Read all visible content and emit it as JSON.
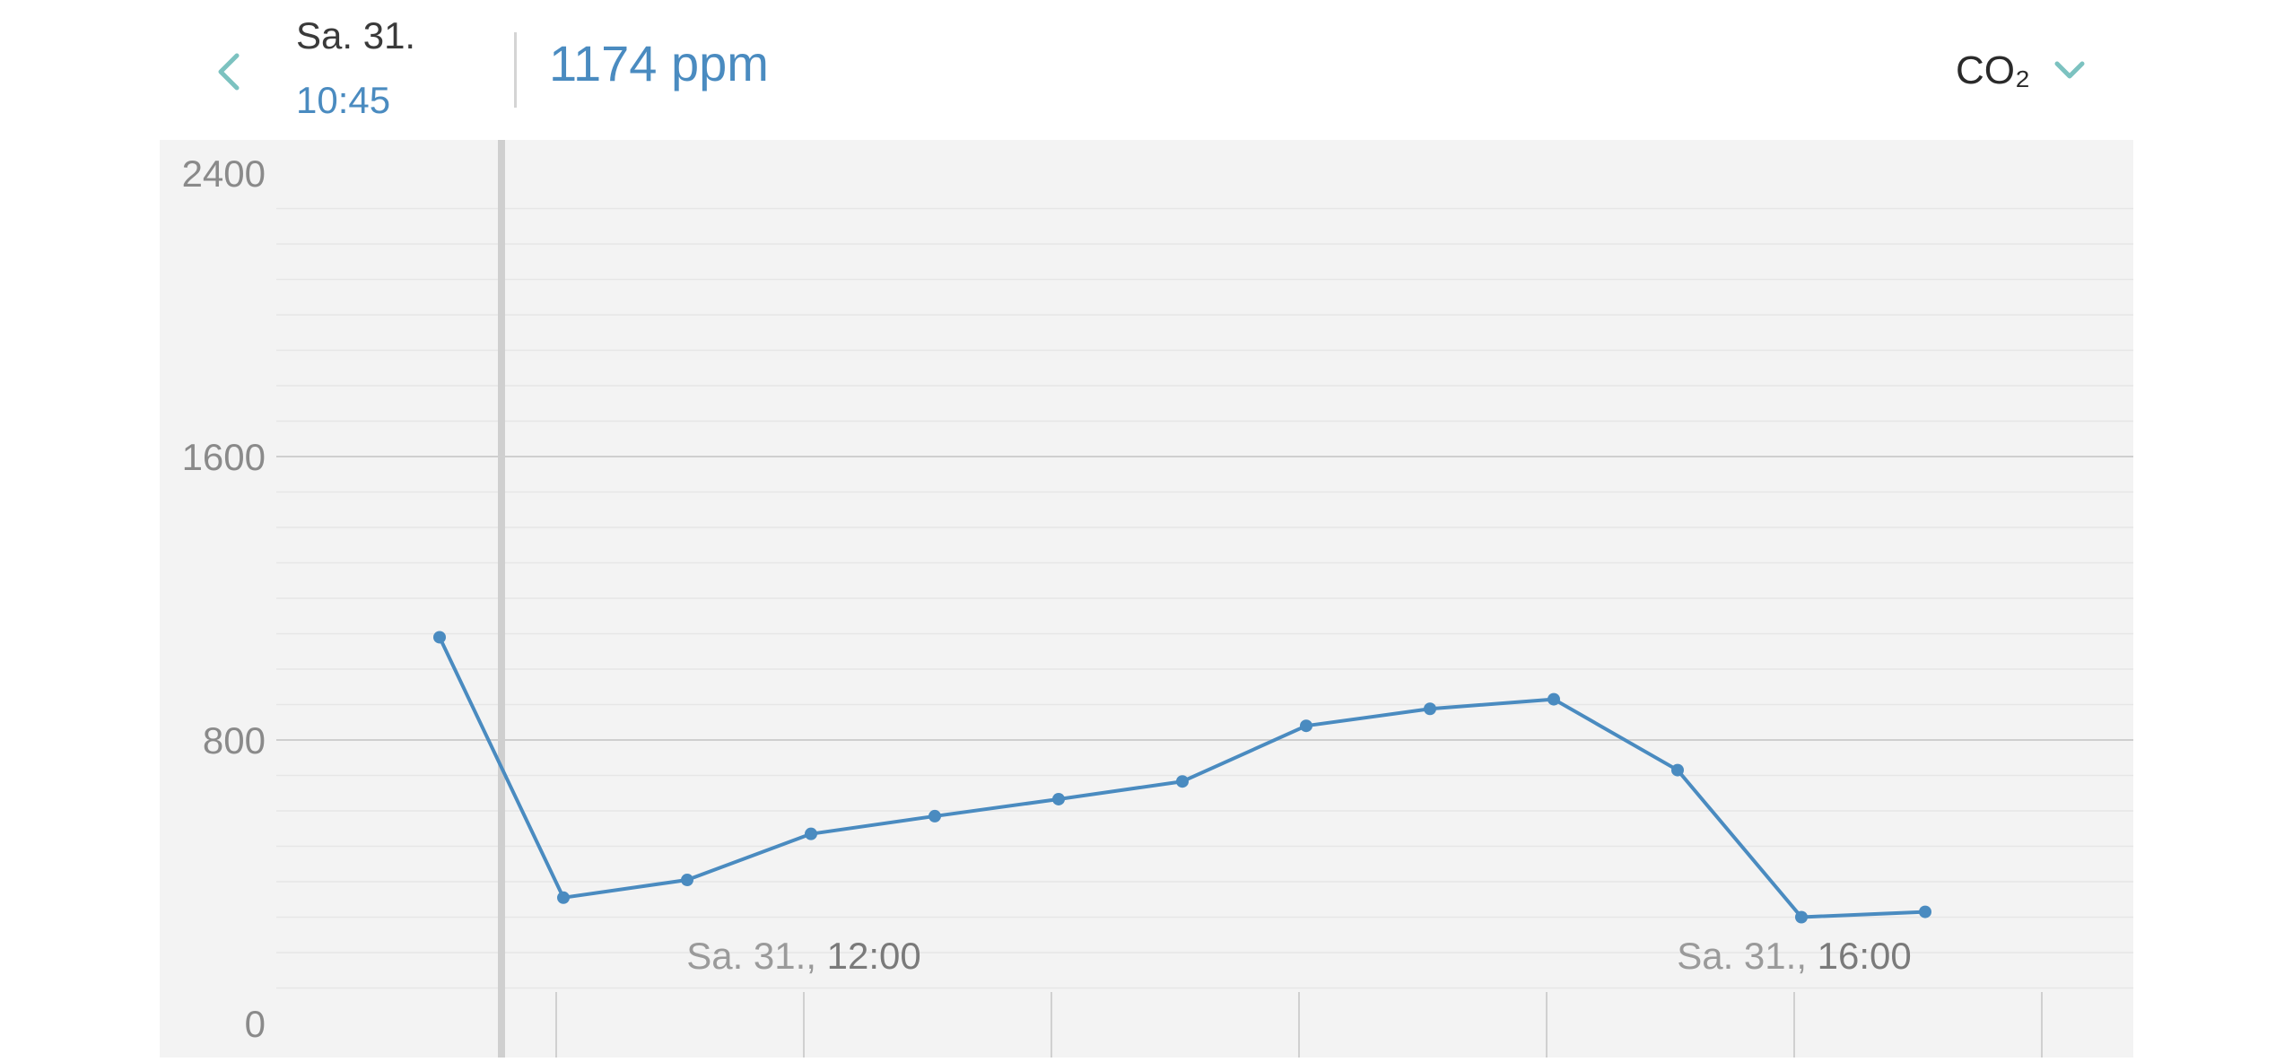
{
  "header": {
    "date": "Sa. 31.",
    "time": "10:45",
    "reading": "1174 ppm",
    "metric": "CO₂"
  },
  "icons": {
    "back": "chevron-left-icon",
    "dropdown": "chevron-down-icon"
  },
  "colors": {
    "accent": "#4a8bc0",
    "chevron": "#7cc2c0",
    "chart_bg": "#f3f3f3",
    "cursor": "#cfcfcf"
  },
  "chart_data": {
    "type": "line",
    "title": "",
    "xlabel": "",
    "ylabel": "",
    "ylim": [
      0,
      2400
    ],
    "y_ticks": [
      0,
      800,
      1600,
      2400
    ],
    "y_tick_labels": [
      "0",
      "800",
      "1600",
      "2400"
    ],
    "x_tick_labels": [
      {
        "prefix": "Sa. 31.,",
        "time": "12:00"
      },
      {
        "prefix": "Sa. 31.,",
        "time": "16:00"
      }
    ],
    "x": [
      "10:30",
      "11:00",
      "11:30",
      "12:00",
      "12:30",
      "13:00",
      "13:30",
      "14:00",
      "14:30",
      "15:00",
      "15:30",
      "16:00",
      "16:30"
    ],
    "series": [
      {
        "values": [
          1090,
          355,
          405,
          535,
          585,
          633,
          683,
          840,
          888,
          915,
          715,
          300,
          315
        ]
      }
    ],
    "cursor_x": "10:45",
    "grid": true
  }
}
